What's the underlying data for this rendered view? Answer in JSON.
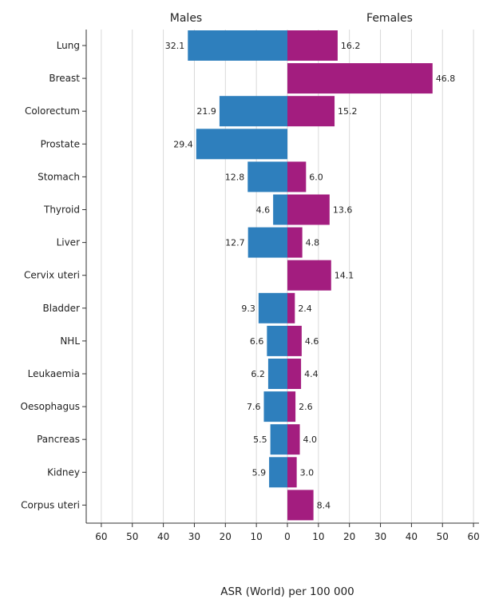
{
  "chart_data": {
    "type": "bar",
    "orientation": "horizontal-population-pyramid",
    "xlabel": "ASR (World) per 100 000",
    "xlim": [
      -60,
      60
    ],
    "x_ticks": [
      60,
      50,
      40,
      30,
      20,
      10,
      0,
      10,
      20,
      30,
      40,
      50,
      60
    ],
    "grid": true,
    "categories": [
      "Lung",
      "Breast",
      "Colorectum",
      "Prostate",
      "Stomach",
      "Thyroid",
      "Liver",
      "Cervix uteri",
      "Bladder",
      "NHL",
      "Leukaemia",
      "Oesophagus",
      "Pancreas",
      "Kidney",
      "Corpus uteri"
    ],
    "series": [
      {
        "name": "Males",
        "side": "left",
        "color": "#2e7fbd",
        "values": [
          32.1,
          null,
          21.9,
          29.4,
          12.8,
          4.6,
          12.7,
          null,
          9.3,
          6.6,
          6.2,
          7.6,
          5.5,
          5.9,
          null
        ],
        "labels": [
          "32.1",
          "",
          "21.9",
          "29.4",
          "12.8",
          "4.6",
          "12.7",
          "",
          "9.3",
          "6.6",
          "6.2",
          "7.6",
          "5.5",
          "5.9",
          ""
        ]
      },
      {
        "name": "Females",
        "side": "right",
        "color": "#a31d7f",
        "values": [
          16.2,
          46.8,
          15.2,
          null,
          6.0,
          13.6,
          4.8,
          14.1,
          2.4,
          4.6,
          4.4,
          2.6,
          4.0,
          3.0,
          8.4
        ],
        "labels": [
          "16.2",
          "46.8",
          "15.2",
          "",
          "6.0",
          "13.6",
          "4.8",
          "14.1",
          "2.4",
          "4.6",
          "4.4",
          "2.6",
          "4.0",
          "3.0",
          "8.4"
        ]
      }
    ]
  }
}
